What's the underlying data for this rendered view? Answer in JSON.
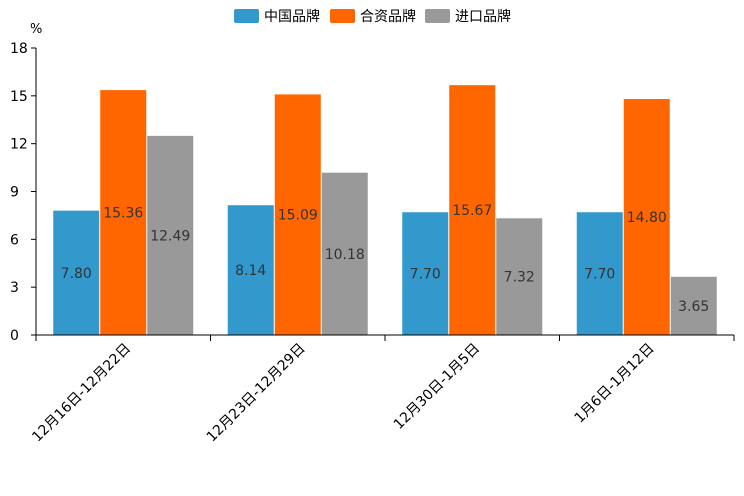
{
  "chart_data": {
    "type": "bar",
    "title": "",
    "unit": "%",
    "xlabel": "",
    "ylabel": "%",
    "ylim": [
      0,
      18
    ],
    "yticks": [
      0,
      3,
      6,
      9,
      12,
      15,
      18
    ],
    "grid": false,
    "legend_position": "top-center",
    "categories": [
      "12月16日-12月22日",
      "12月23日-12月29日",
      "12月30日-1月5日",
      "1月6日-1月12日"
    ],
    "series": [
      {
        "name": "中国品牌",
        "color": "#3399CC",
        "values": [
          7.8,
          8.14,
          7.7,
          7.7
        ],
        "labels": [
          "7.80",
          "8.14",
          "7.70",
          "7.70"
        ]
      },
      {
        "name": "合资品牌",
        "color": "#FF6600",
        "values": [
          15.36,
          15.09,
          15.67,
          14.8
        ],
        "labels": [
          "15.36",
          "15.09",
          "15.67",
          "14.80"
        ]
      },
      {
        "name": "进口品牌",
        "color": "#999999",
        "values": [
          12.49,
          10.18,
          7.32,
          3.65
        ],
        "labels": [
          "12.49",
          "10.18",
          "7.32",
          "3.65"
        ]
      }
    ]
  }
}
